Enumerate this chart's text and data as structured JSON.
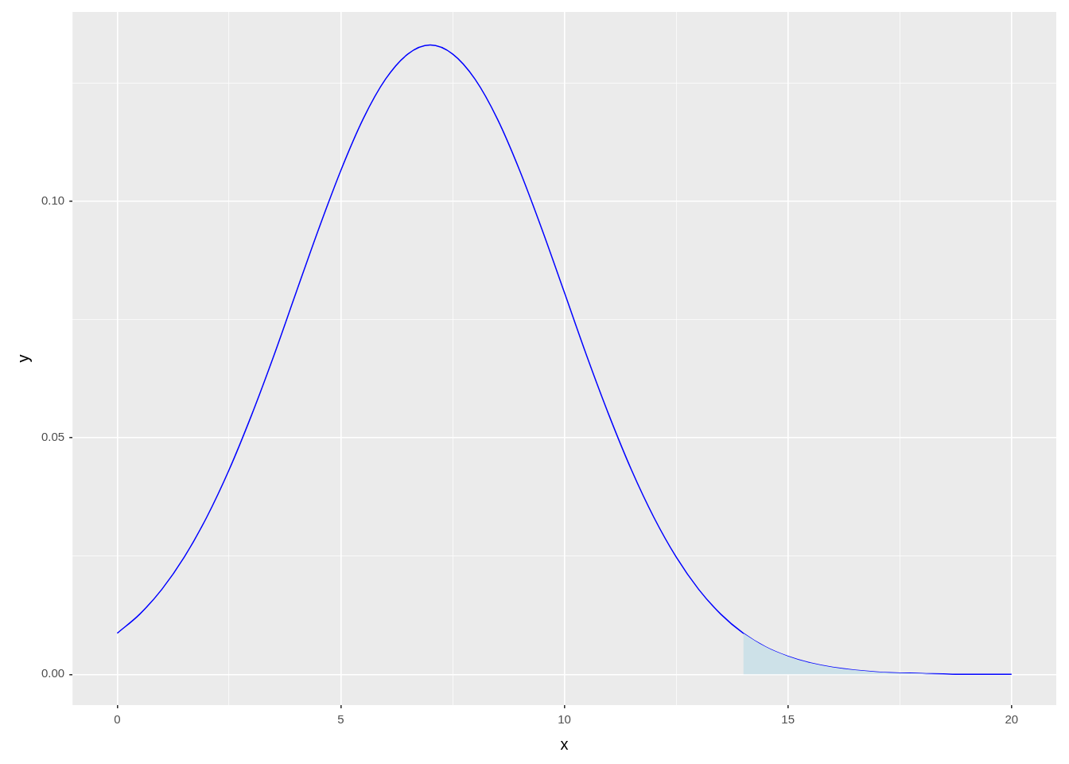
{
  "chart_data": {
    "type": "line",
    "xlabel": "x",
    "ylabel": "y",
    "xlim": [
      -1,
      21
    ],
    "ylim": [
      -0.0065,
      0.14
    ],
    "xticks": [
      0,
      {
        "value": 2.5,
        "label": null
      },
      5,
      {
        "value": 7.5,
        "label": null
      },
      10,
      {
        "value": 12.5,
        "label": null
      },
      15,
      {
        "value": 17.5,
        "label": null
      },
      20
    ],
    "yticks": [
      {
        "value": 0,
        "label": "0.00"
      },
      {
        "value": 0.025,
        "label": null
      },
      {
        "value": 0.05,
        "label": "0.05"
      },
      {
        "value": 0.075,
        "label": null
      },
      {
        "value": 0.1,
        "label": "0.10"
      },
      {
        "value": 0.125,
        "label": null
      }
    ],
    "grid": true,
    "legend": false,
    "marker": "none",
    "line_style": "solid",
    "series": [
      {
        "type": "area",
        "color": "#cde1e8",
        "x": [
          14,
          14.5,
          15,
          15.5,
          16,
          17,
          18,
          19,
          20
        ],
        "values": [
          0.0087,
          0.0058,
          0.0038,
          0.0024,
          0.0015,
          0.0005,
          0.0002,
          0.0,
          0.0
        ]
      },
      {
        "color": "#0000ff",
        "x": [
          0,
          0.5,
          1,
          1.5,
          2,
          2.5,
          3,
          3.5,
          4,
          4.5,
          5,
          5.5,
          6,
          6.5,
          7,
          7.5,
          8,
          8.5,
          9,
          9.5,
          10,
          10.5,
          11,
          11.5,
          12,
          12.5,
          13,
          13.5,
          14,
          14.5,
          15,
          15.5,
          16,
          17,
          18,
          19,
          20
        ],
        "values": [
          0.0087,
          0.0127,
          0.018,
          0.0248,
          0.0332,
          0.0432,
          0.0547,
          0.0673,
          0.0807,
          0.094,
          0.1065,
          0.1174,
          0.1258,
          0.1311,
          0.133,
          0.1311,
          0.1258,
          0.1174,
          0.1065,
          0.094,
          0.0807,
          0.0673,
          0.0547,
          0.0432,
          0.0332,
          0.0248,
          0.018,
          0.0127,
          0.0087,
          0.0058,
          0.0038,
          0.0024,
          0.0015,
          0.0005,
          0.0002,
          0.0,
          0.0
        ]
      }
    ]
  }
}
